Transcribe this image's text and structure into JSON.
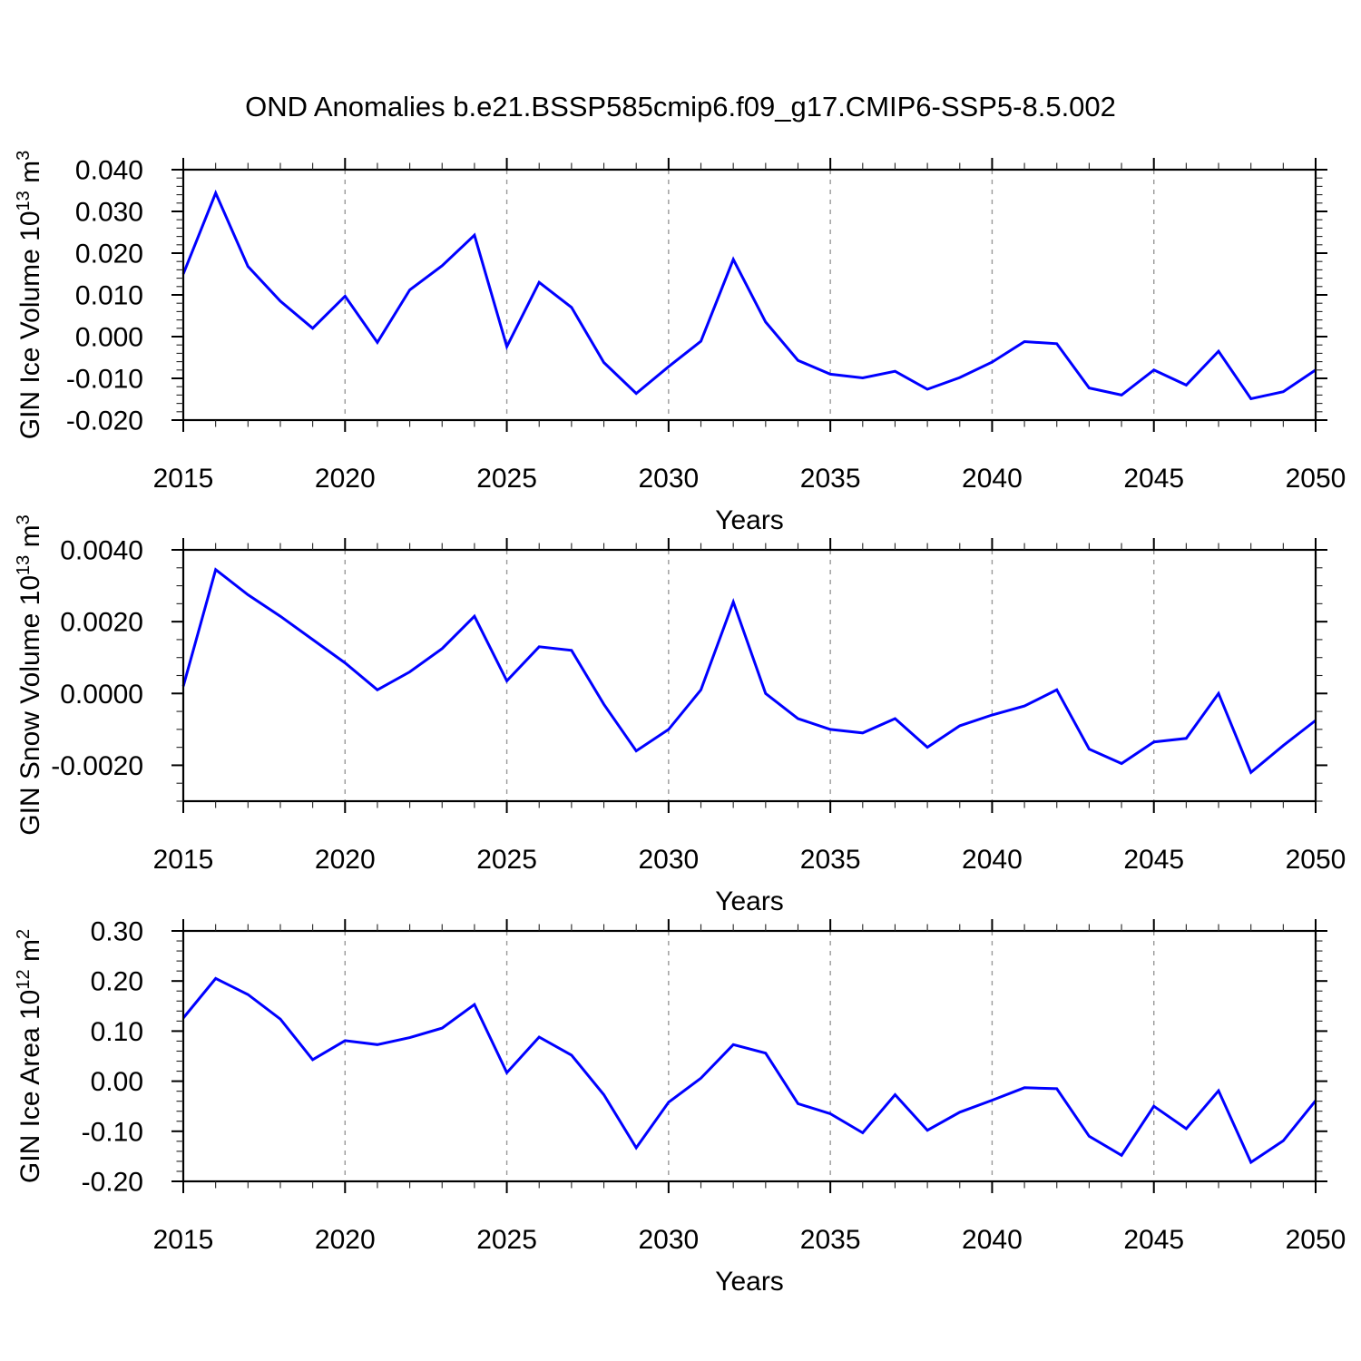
{
  "title": "OND Anomalies b.e21.BSSP585cmip6.f09_g17.CMIP6-SSP5-8.5.002",
  "colors": {
    "line": "#0000ff",
    "grid": "#999999",
    "axis": "#000000",
    "minor_tick": "#222222",
    "background": "#ffffff"
  },
  "x_axis": {
    "label": "Years",
    "range": [
      2015,
      2050
    ],
    "major_tick_years": [
      2015,
      2020,
      2025,
      2030,
      2035,
      2040,
      2045,
      2050
    ],
    "tick_labels": [
      "2015",
      "2020",
      "2025",
      "2030",
      "2035",
      "2040",
      "2045",
      "2050"
    ],
    "minor_step": 1,
    "grid_years": [
      2020,
      2025,
      2030,
      2035,
      2040,
      2045
    ]
  },
  "charts": [
    {
      "name": "gin-ice-volume",
      "ylabel": {
        "text": "GIN Ice Volume 10",
        "exp": "13",
        "unit": " m",
        "unit_exp": "3"
      },
      "ylim": [
        -0.02,
        0.04
      ],
      "y_major_step": 0.01,
      "y_minor_step": 0.002,
      "y_tick_values": [
        0.04,
        0.03,
        0.02,
        0.01,
        0.0,
        -0.01,
        -0.02
      ],
      "y_tick_labels": [
        "0.040",
        "0.030",
        "0.020",
        "0.010",
        "0.000",
        "-0.010",
        "-0.020"
      ]
    },
    {
      "name": "gin-snow-volume",
      "ylabel": {
        "text": "GIN Snow Volume 10",
        "exp": "13",
        "unit": " m",
        "unit_exp": "3"
      },
      "ylim": [
        -0.003,
        0.004
      ],
      "y_major_step": 0.002,
      "y_minor_step": 0.0005,
      "y_tick_values": [
        0.004,
        0.002,
        0.0,
        -0.002
      ],
      "y_tick_labels": [
        "0.0040",
        "0.0020",
        "0.0000",
        "-0.0020"
      ]
    },
    {
      "name": "gin-ice-area",
      "ylabel": {
        "text": "GIN Ice Area 10",
        "exp": "12",
        "unit": " m",
        "unit_exp": "2"
      },
      "ylim": [
        -0.2,
        0.3
      ],
      "y_major_step": 0.1,
      "y_minor_step": 0.02,
      "y_tick_values": [
        0.3,
        0.2,
        0.1,
        0.0,
        -0.1,
        -0.2
      ],
      "y_tick_labels": [
        "0.30",
        "0.20",
        "0.10",
        "0.00",
        "-0.10",
        "-0.20"
      ]
    }
  ],
  "chart_data": [
    {
      "type": "line",
      "name": "GIN Ice Volume anomaly",
      "title": "OND Anomalies b.e21.BSSP585cmip6.f09_g17.CMIP6-SSP5-8.5.002",
      "xlabel": "Years",
      "ylabel": "GIN Ice Volume 10^13 m^3",
      "xlim": [
        2015,
        2050
      ],
      "ylim": [
        -0.02,
        0.04
      ],
      "grid": "vertical dashed every 5 years (2020-2045)",
      "legend": "none",
      "years": [
        2015,
        2016,
        2017,
        2018,
        2019,
        2020,
        2021,
        2022,
        2023,
        2024,
        2025,
        2026,
        2027,
        2028,
        2029,
        2030,
        2031,
        2032,
        2033,
        2034,
        2035,
        2036,
        2037,
        2038,
        2039,
        2040,
        2041,
        2042,
        2043,
        2044,
        2045,
        2046,
        2047,
        2048,
        2049,
        2050
      ],
      "values": [
        0.015,
        0.0344,
        0.0168,
        0.0085,
        0.002,
        0.0097,
        -0.0014,
        0.0112,
        0.017,
        0.0243,
        -0.0024,
        0.013,
        0.007,
        -0.0062,
        -0.0136,
        -0.0072,
        -0.0011,
        0.0185,
        0.0035,
        -0.0057,
        -0.009,
        -0.0099,
        -0.0083,
        -0.0126,
        -0.0098,
        -0.0061,
        -0.0012,
        -0.0017,
        -0.0123,
        -0.014,
        -0.008,
        -0.0116,
        -0.0035,
        -0.0149,
        -0.0132,
        -0.008
      ]
    },
    {
      "type": "line",
      "name": "GIN Snow Volume anomaly",
      "title": "OND Anomalies b.e21.BSSP585cmip6.f09_g17.CMIP6-SSP5-8.5.002",
      "xlabel": "Years",
      "ylabel": "GIN Snow Volume 10^13 m^3",
      "xlim": [
        2015,
        2050
      ],
      "ylim": [
        -0.003,
        0.004
      ],
      "grid": "vertical dashed every 5 years (2020-2045)",
      "legend": "none",
      "years": [
        2015,
        2016,
        2017,
        2018,
        2019,
        2020,
        2021,
        2022,
        2023,
        2024,
        2025,
        2026,
        2027,
        2028,
        2029,
        2030,
        2031,
        2032,
        2033,
        2034,
        2035,
        2036,
        2037,
        2038,
        2039,
        2040,
        2041,
        2042,
        2043,
        2044,
        2045,
        2046,
        2047,
        2048,
        2049,
        2050
      ],
      "values": [
        0.0002,
        0.00345,
        0.00275,
        0.00215,
        0.0015,
        0.00085,
        0.0001,
        0.0006,
        0.00125,
        0.00215,
        0.00035,
        0.0013,
        0.0012,
        -0.0003,
        -0.0016,
        -0.001,
        0.0001,
        0.00255,
        0.0,
        -0.0007,
        -0.001,
        -0.0011,
        -0.0007,
        -0.0015,
        -0.0009,
        -0.0006,
        -0.00035,
        0.0001,
        -0.00155,
        -0.00195,
        -0.00135,
        -0.00125,
        0.0,
        -0.0022,
        -0.00145,
        -0.00075
      ]
    },
    {
      "type": "line",
      "name": "GIN Ice Area anomaly",
      "title": "OND Anomalies b.e21.BSSP585cmip6.f09_g17.CMIP6-SSP5-8.5.002",
      "xlabel": "Years",
      "ylabel": "GIN Ice Area 10^12 m^2",
      "xlim": [
        2015,
        2050
      ],
      "ylim": [
        -0.2,
        0.3
      ],
      "grid": "vertical dashed every 5 years (2020-2045)",
      "legend": "none",
      "years": [
        2015,
        2016,
        2017,
        2018,
        2019,
        2020,
        2021,
        2022,
        2023,
        2024,
        2025,
        2026,
        2027,
        2028,
        2029,
        2030,
        2031,
        2032,
        2033,
        2034,
        2035,
        2036,
        2037,
        2038,
        2039,
        2040,
        2041,
        2042,
        2043,
        2044,
        2045,
        2046,
        2047,
        2048,
        2049,
        2050
      ],
      "values": [
        0.126,
        0.205,
        0.173,
        0.124,
        0.043,
        0.081,
        0.073,
        0.087,
        0.106,
        0.153,
        0.017,
        0.088,
        0.052,
        -0.027,
        -0.133,
        -0.042,
        0.006,
        0.073,
        0.056,
        -0.045,
        -0.065,
        -0.103,
        -0.027,
        -0.098,
        -0.062,
        -0.038,
        -0.013,
        -0.015,
        -0.11,
        -0.148,
        -0.05,
        -0.095,
        -0.019,
        -0.162,
        -0.119,
        -0.039
      ]
    }
  ]
}
